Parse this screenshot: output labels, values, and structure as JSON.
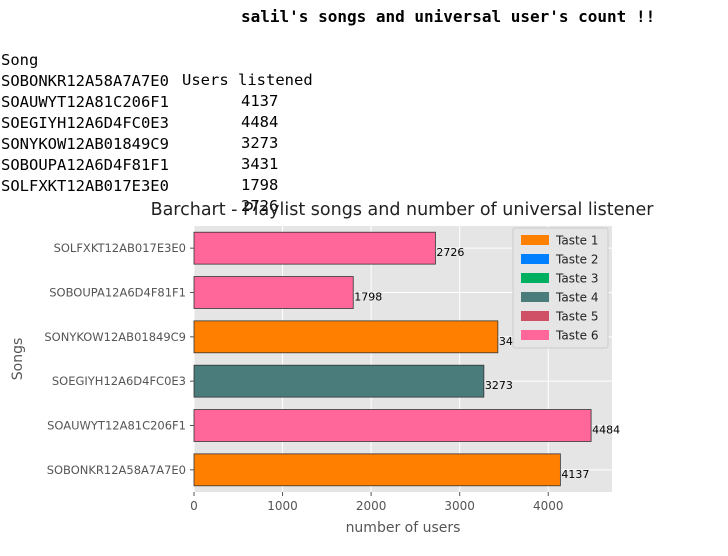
{
  "console": {
    "heading": "salil's songs and universal user's count !!",
    "header_song": "Song",
    "header_users": "Users listened",
    "rows": [
      {
        "song": "SOBONKR12A58A7A7E0",
        "users": "4137"
      },
      {
        "song": "SOAUWYT12A81C206F1",
        "users": "4484"
      },
      {
        "song": "SOEGIYH12A6D4FC0E3",
        "users": "3273"
      },
      {
        "song": "SONYKOW12AB01849C9",
        "users": "3431"
      },
      {
        "song": "SOBOUPA12A6D4F81F1",
        "users": "1798"
      },
      {
        "song": "SOLFXKT12AB017E3E0",
        "users": "2726"
      }
    ]
  },
  "chart_data": {
    "type": "bar",
    "orientation": "horizontal",
    "title": "Barchart - Playlist songs and number of universal listener",
    "xlabel": "number of users",
    "ylabel": "Songs",
    "xlim": [
      0,
      4720
    ],
    "xticks": [
      0,
      1000,
      2000,
      3000,
      4000
    ],
    "grid": true,
    "legend_position": "top-right",
    "categories": [
      "SOBONKR12A58A7A7E0",
      "SOAUWYT12A81C206F1",
      "SOEGIYH12A6D4FC0E3",
      "SONYKOW12AB01849C9",
      "SOBOUPA12A6D4F81F1",
      "SOLFXKT12AB017E3E0"
    ],
    "values": [
      4137,
      4484,
      3273,
      3431,
      1798,
      2726
    ],
    "bar_colors": [
      "#ff8000",
      "#ff6699",
      "#4a7c7c",
      "#ff8000",
      "#ff6699",
      "#ff6699"
    ],
    "legend": [
      {
        "label": "Taste 1",
        "color": "#ff8000"
      },
      {
        "label": "Taste 2",
        "color": "#0080ff"
      },
      {
        "label": "Taste 3",
        "color": "#00b060"
      },
      {
        "label": "Taste 4",
        "color": "#4a7c7c"
      },
      {
        "label": "Taste 5",
        "color": "#d05065"
      },
      {
        "label": "Taste 6",
        "color": "#ff6699"
      }
    ],
    "colors": {
      "plot_bg": "#e5e5e5",
      "grid": "#ffffff",
      "bar_edge": "#333333"
    }
  }
}
